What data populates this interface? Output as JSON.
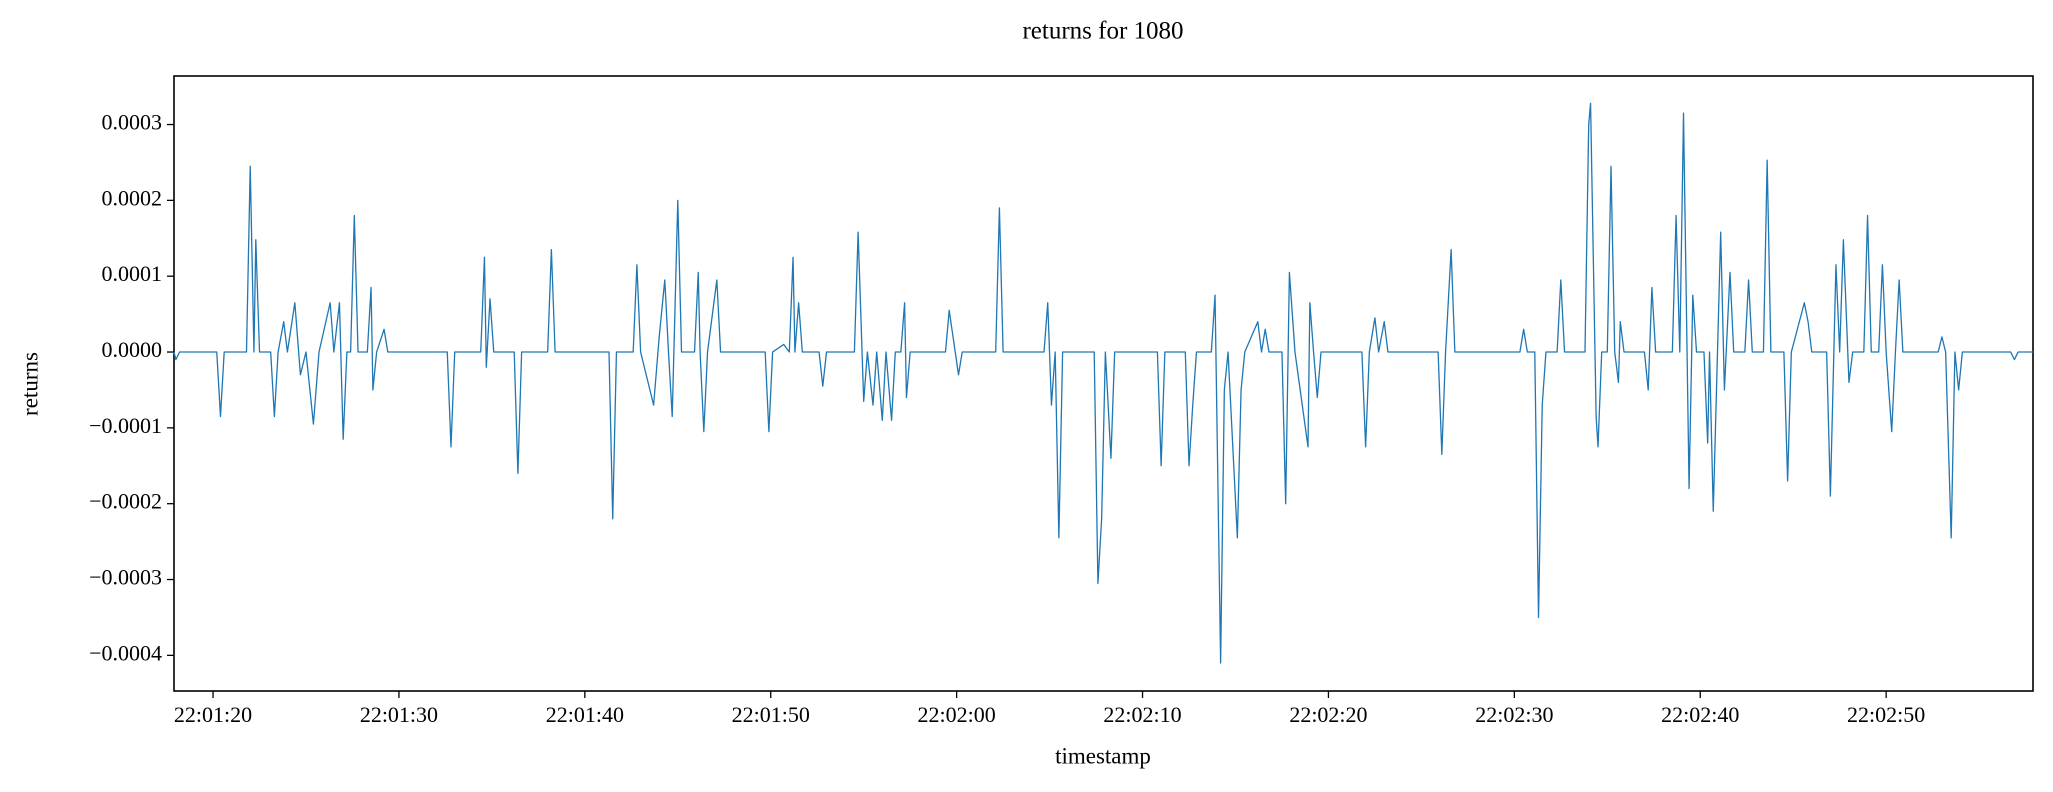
{
  "chart_data": {
    "type": "line",
    "title": "returns for 1080",
    "xlabel": "timestamp",
    "ylabel": "returns",
    "color": "#1f77b4",
    "xlim": [
      "22:01:17.9",
      "22:02:57.9"
    ],
    "xticks": [
      "22:01:20",
      "22:01:30",
      "22:01:40",
      "22:01:50",
      "22:02:00",
      "22:02:10",
      "22:02:20",
      "22:02:30",
      "22:02:40",
      "22:02:50"
    ],
    "ylim": [
      -0.000447,
      0.000364
    ],
    "yticks": [
      {
        "value": -0.0004,
        "label": "−0.0004"
      },
      {
        "value": -0.0003,
        "label": "−0.0003"
      },
      {
        "value": -0.0002,
        "label": "−0.0002"
      },
      {
        "value": -0.0001,
        "label": "−0.0001"
      },
      {
        "value": 0,
        "label": "0.0000"
      },
      0.0001,
      0.0002,
      0.0003
    ],
    "x": [
      "22:01:17.9",
      "22:01:18.0",
      "22:01:18.2",
      "22:01:20.2",
      "22:01:20.4",
      "22:01:20.6",
      "22:01:21.8",
      "22:01:22.0",
      "22:01:22.2",
      "22:01:22.3",
      "22:01:22.5",
      "22:01:23.1",
      "22:01:23.3",
      "22:01:23.5",
      "22:01:23.8",
      "22:01:24.0",
      "22:01:24.4",
      "22:01:24.7",
      "22:01:25.0",
      "22:01:25.4",
      "22:01:25.7",
      "22:01:26.3",
      "22:01:26.5",
      "22:01:26.8",
      "22:01:27.0",
      "22:01:27.2",
      "22:01:27.4",
      "22:01:27.6",
      "22:01:27.8",
      "22:01:28.3",
      "22:01:28.5",
      "22:01:28.6",
      "22:01:28.8",
      "22:01:29.2",
      "22:01:29.4",
      "22:01:32.6",
      "22:01:32.8",
      "22:01:33.0",
      "22:01:34.4",
      "22:01:34.6",
      "22:01:34.7",
      "22:01:34.9",
      "22:01:35.1",
      "22:01:36.2",
      "22:01:36.4",
      "22:01:36.6",
      "22:01:38.0",
      "22:01:38.2",
      "22:01:38.4",
      "22:01:41.3",
      "22:01:41.5",
      "22:01:41.7",
      "22:01:42.6",
      "22:01:42.8",
      "22:01:43.0",
      "22:01:43.7",
      "22:01:44.0",
      "22:01:44.3",
      "22:01:44.5",
      "22:01:44.7",
      "22:01:45.0",
      "22:01:45.2",
      "22:01:45.9",
      "22:01:46.1",
      "22:01:46.2",
      "22:01:46.4",
      "22:01:46.6",
      "22:01:47.1",
      "22:01:47.3",
      "22:01:49.7",
      "22:01:49.9",
      "22:01:50.1",
      "22:01:50.7",
      "22:01:51.0",
      "22:01:51.2",
      "22:01:51.3",
      "22:01:51.5",
      "22:01:51.7",
      "22:01:52.6",
      "22:01:52.8",
      "22:01:53.0",
      "22:01:54.5",
      "22:01:54.7",
      "22:01:55.0",
      "22:01:55.2",
      "22:01:55.5",
      "22:01:55.7",
      "22:01:56.0",
      "22:01:56.2",
      "22:01:56.5",
      "22:01:56.7",
      "22:01:57.0",
      "22:01:57.2",
      "22:01:57.3",
      "22:01:57.5",
      "22:01:59.4",
      "22:01:59.6",
      "22:02:00.1",
      "22:02:00.3",
      "22:02:02.1",
      "22:02:02.3",
      "22:02:02.5",
      "22:02:04.7",
      "22:02:04.9",
      "22:02:05.1",
      "22:02:05.3",
      "22:02:05.5",
      "22:02:05.7",
      "22:02:07.4",
      "22:02:07.6",
      "22:02:07.8",
      "22:02:08.0",
      "22:02:08.3",
      "22:02:08.5",
      "22:02:10.8",
      "22:02:11.0",
      "22:02:11.2",
      "22:02:12.3",
      "22:02:12.5",
      "22:02:12.7",
      "22:02:12.9",
      "22:02:13.7",
      "22:02:13.9",
      "22:02:14.2",
      "22:02:14.4",
      "22:02:14.6",
      "22:02:15.1",
      "22:02:15.3",
      "22:02:15.5",
      "22:02:16.2",
      "22:02:16.4",
      "22:02:16.6",
      "22:02:16.8",
      "22:02:17.5",
      "22:02:17.7",
      "22:02:17.9",
      "22:02:18.2",
      "22:02:18.9",
      "22:02:19.0",
      "22:02:19.2",
      "22:02:19.4",
      "22:02:19.6",
      "22:02:21.8",
      "22:02:22.0",
      "22:02:22.2",
      "22:02:22.5",
      "22:02:22.7",
      "22:02:23.0",
      "22:02:23.2",
      "22:02:25.9",
      "22:02:26.1",
      "22:02:26.3",
      "22:02:26.6",
      "22:02:26.8",
      "22:02:30.3",
      "22:02:30.5",
      "22:02:30.7",
      "22:02:31.1",
      "22:02:31.3",
      "22:02:31.5",
      "22:02:31.7",
      "22:02:32.3",
      "22:02:32.5",
      "22:02:32.7",
      "22:02:33.8",
      "22:02:34.0",
      "22:02:34.1",
      "22:02:34.4",
      "22:02:34.5",
      "22:02:34.7",
      "22:02:35.0",
      "22:02:35.2",
      "22:02:35.4",
      "22:02:35.6",
      "22:02:35.7",
      "22:02:35.9",
      "22:02:37.0",
      "22:02:37.2",
      "22:02:37.4",
      "22:02:37.6",
      "22:02:38.5",
      "22:02:38.7",
      "22:02:38.9",
      "22:02:39.1",
      "22:02:39.4",
      "22:02:39.6",
      "22:02:39.8",
      "22:02:40.2",
      "22:02:40.4",
      "22:02:40.5",
      "22:02:40.7",
      "22:02:41.1",
      "22:02:41.3",
      "22:02:41.6",
      "22:02:41.8",
      "22:02:42.4",
      "22:02:42.6",
      "22:02:42.8",
      "22:02:43.4",
      "22:02:43.6",
      "22:02:43.8",
      "22:02:44.5",
      "22:02:44.7",
      "22:02:44.9",
      "22:02:45.6",
      "22:02:45.8",
      "22:02:46.0",
      "22:02:46.8",
      "22:02:47.0",
      "22:02:47.3",
      "22:02:47.5",
      "22:02:47.7",
      "22:02:48.0",
      "22:02:48.2",
      "22:02:48.8",
      "22:02:49.0",
      "22:02:49.2",
      "22:02:49.6",
      "22:02:49.8",
      "22:02:50.0",
      "22:02:50.3",
      "22:02:50.5",
      "22:02:50.7",
      "22:02:50.9",
      "22:02:52.8",
      "22:02:53.0",
      "22:02:53.2",
      "22:02:53.5",
      "22:02:53.7",
      "22:02:53.9",
      "22:02:54.1",
      "22:02:56.7",
      "22:02:56.9",
      "22:02:57.1",
      "22:02:57.9"
    ],
    "values": [
      0,
      -1e-05,
      0,
      0,
      -8.5e-05,
      0,
      0,
      0.000245,
      0,
      0.000148,
      0,
      0,
      -8.5e-05,
      0,
      4e-05,
      0,
      6.5e-05,
      -3e-05,
      0,
      -9.5e-05,
      0,
      6.5e-05,
      0,
      6.5e-05,
      -0.000115,
      0,
      0,
      0.00018,
      0,
      0,
      8.5e-05,
      -5e-05,
      0,
      3e-05,
      0,
      0,
      -0.000125,
      0,
      0,
      0.000125,
      -2e-05,
      7e-05,
      0,
      0,
      -0.00016,
      0,
      0,
      0.000135,
      0,
      0,
      -0.00022,
      0,
      0,
      0.000115,
      0,
      -7e-05,
      2e-05,
      9.5e-05,
      0,
      -8.5e-05,
      0.0002,
      0,
      0,
      0.000105,
      0,
      -0.000105,
      0,
      9.5e-05,
      0,
      0,
      -0.000105,
      0,
      1e-05,
      0,
      0.000125,
      0,
      6.5e-05,
      0,
      0,
      -4.5e-05,
      0,
      0,
      0.000158,
      -6.5e-05,
      0,
      -7e-05,
      0,
      -9e-05,
      0,
      -9e-05,
      0,
      0,
      6.5e-05,
      -6e-05,
      0,
      0,
      5.5e-05,
      -3e-05,
      0,
      0,
      0.00019,
      0,
      0,
      6.5e-05,
      -7e-05,
      0,
      -0.000245,
      0,
      0,
      -0.000305,
      -0.00022,
      0,
      -0.00014,
      0,
      0,
      -0.00015,
      0,
      0,
      -0.00015,
      -7e-05,
      0,
      0,
      7.5e-05,
      -0.00041,
      -5e-05,
      0,
      -0.000245,
      -5e-05,
      0,
      4e-05,
      0,
      3e-05,
      0,
      0,
      -0.0002,
      0.000105,
      0,
      -0.000125,
      6.5e-05,
      0,
      -6e-05,
      0,
      0,
      -0.000125,
      0,
      4.5e-05,
      0,
      4e-05,
      0,
      0,
      -0.000135,
      0,
      0.000135,
      0,
      0,
      3e-05,
      0,
      0,
      -0.00035,
      -7e-05,
      0,
      0,
      9.5e-05,
      0,
      0,
      0.0003,
      0.000328,
      -8.5e-05,
      -0.000125,
      0,
      0,
      0.000245,
      0,
      -4e-05,
      4e-05,
      0,
      0,
      -5e-05,
      8.5e-05,
      0,
      0,
      0.00018,
      0,
      0.000315,
      -0.00018,
      7.5e-05,
      0,
      0,
      -0.00012,
      0,
      -0.00021,
      0.000158,
      -5e-05,
      0.000105,
      0,
      0,
      9.5e-05,
      0,
      0,
      0.000253,
      0,
      0,
      -0.00017,
      0,
      6.5e-05,
      4e-05,
      0,
      0,
      -0.00019,
      0.000115,
      0,
      0.000148,
      -4e-05,
      0,
      0,
      0.00018,
      0,
      0,
      0.000115,
      0,
      -0.000105,
      0,
      9.5e-05,
      0,
      0,
      2e-05,
      0,
      -0.000245,
      0,
      -5e-05,
      0,
      0,
      -1e-05,
      0,
      0
    ]
  }
}
